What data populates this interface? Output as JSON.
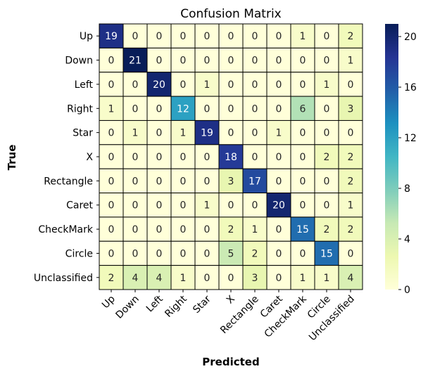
{
  "chart_data": {
    "type": "heatmap",
    "title": "Confusion Matrix",
    "xlabel": "Predicted",
    "ylabel": "True",
    "x_categories": [
      "Up",
      "Down",
      "Left",
      "Right",
      "Star",
      "X",
      "Rectangle",
      "Caret",
      "CheckMark",
      "Circle",
      "Unclassified"
    ],
    "y_categories": [
      "Up",
      "Down",
      "Left",
      "Right",
      "Star",
      "X",
      "Rectangle",
      "Caret",
      "CheckMark",
      "Circle",
      "Unclassified"
    ],
    "values": [
      [
        19,
        0,
        0,
        0,
        0,
        0,
        0,
        0,
        1,
        0,
        2
      ],
      [
        0,
        21,
        0,
        0,
        0,
        0,
        0,
        0,
        0,
        0,
        1
      ],
      [
        0,
        0,
        20,
        0,
        1,
        0,
        0,
        0,
        0,
        1,
        0
      ],
      [
        1,
        0,
        0,
        12,
        0,
        0,
        0,
        0,
        6,
        0,
        3
      ],
      [
        0,
        1,
        0,
        1,
        19,
        0,
        0,
        1,
        0,
        0,
        0
      ],
      [
        0,
        0,
        0,
        0,
        0,
        18,
        0,
        0,
        0,
        2,
        2
      ],
      [
        0,
        0,
        0,
        0,
        0,
        3,
        17,
        0,
        0,
        0,
        2
      ],
      [
        0,
        0,
        0,
        0,
        1,
        0,
        0,
        20,
        0,
        0,
        1
      ],
      [
        0,
        0,
        0,
        0,
        0,
        2,
        1,
        0,
        15,
        2,
        2
      ],
      [
        0,
        0,
        0,
        0,
        0,
        5,
        2,
        0,
        0,
        15,
        0
      ],
      [
        2,
        4,
        4,
        1,
        0,
        0,
        3,
        0,
        1,
        1,
        4
      ]
    ],
    "colorbar": {
      "colormap": "YlGnBu",
      "vmin": 0,
      "vmax": 21,
      "ticks": [
        0,
        4,
        8,
        12,
        16,
        20
      ]
    }
  }
}
